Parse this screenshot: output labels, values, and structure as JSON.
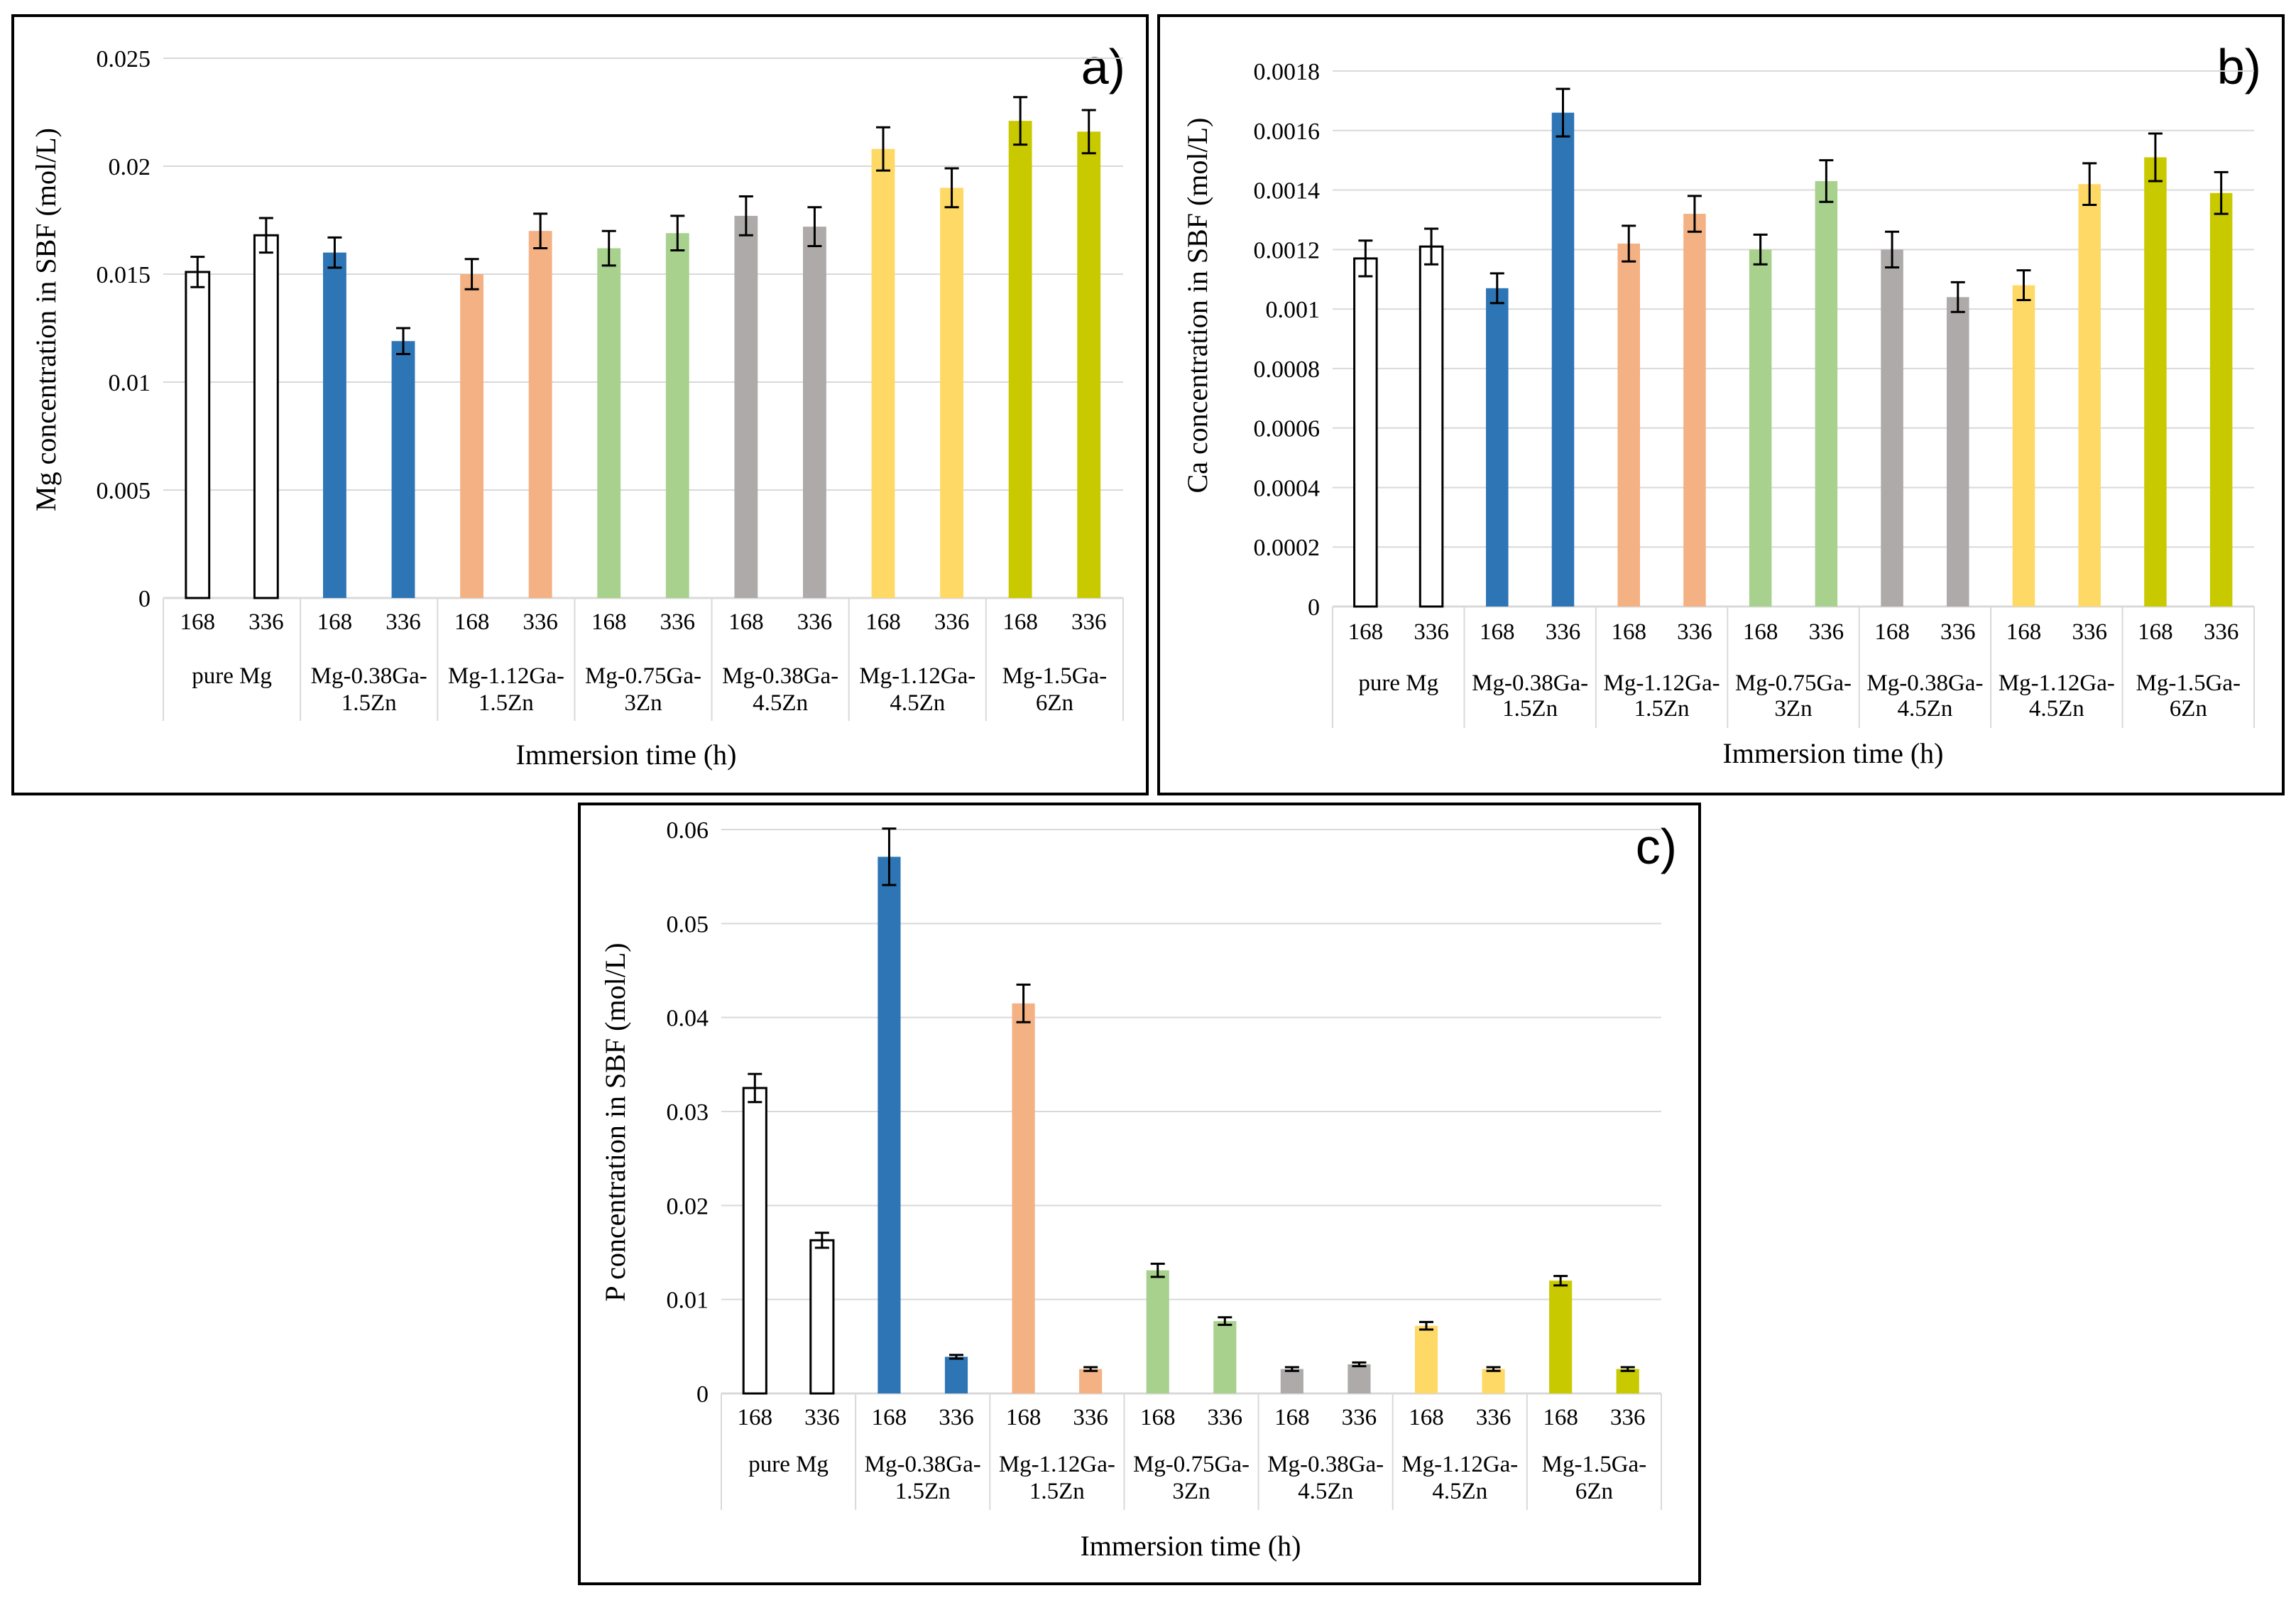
{
  "chart_data": [
    {
      "type": "bar",
      "panel_label": "a)",
      "ylabel": "Mg concentration in SBF (mol/L)",
      "xlabel": "Immersion time (h)",
      "ylim": [
        0,
        0.025
      ],
      "yticks": [
        {
          "value": 0,
          "label": "0"
        },
        {
          "value": 0.005,
          "label": "0.005"
        },
        {
          "value": 0.01,
          "label": "0.01"
        },
        {
          "value": 0.015,
          "label": "0.015"
        },
        {
          "value": 0.02,
          "label": "0.02"
        },
        {
          "value": 0.025,
          "label": "0.025"
        }
      ],
      "grid": true,
      "categories": [
        "pure Mg",
        "Mg-0.38Ga-1.5Zn",
        "Mg-1.12Ga-1.5Zn",
        "Mg-0.75Ga-3Zn",
        "Mg-0.38Ga-4.5Zn",
        "Mg-1.12Ga-4.5Zn",
        "Mg-1.5Ga-6Zn"
      ],
      "category_lines": [
        [
          "pure Mg"
        ],
        [
          "Mg-0.38Ga-",
          "1.5Zn"
        ],
        [
          "Mg-1.12Ga-",
          "1.5Zn"
        ],
        [
          "Mg-0.75Ga-",
          "3Zn"
        ],
        [
          "Mg-0.38Ga-",
          "4.5Zn"
        ],
        [
          "Mg-1.12Ga-",
          "4.5Zn"
        ],
        [
          "Mg-1.5Ga-",
          "6Zn"
        ]
      ],
      "times": [
        "168",
        "336"
      ],
      "colors": [
        "#ffffff",
        "#2e75b6",
        "#f4b183",
        "#a9d18e",
        "#aeaaaa",
        "#ffd966",
        "#c9c900"
      ],
      "values": [
        [
          0.0151,
          0.0168
        ],
        [
          0.016,
          0.0119
        ],
        [
          0.015,
          0.017
        ],
        [
          0.0162,
          0.0169
        ],
        [
          0.0177,
          0.0172
        ],
        [
          0.0208,
          0.019
        ],
        [
          0.0221,
          0.0216
        ]
      ],
      "errors": [
        [
          0.0007,
          0.0008
        ],
        [
          0.0007,
          0.0006
        ],
        [
          0.0007,
          0.0008
        ],
        [
          0.0008,
          0.0008
        ],
        [
          0.0009,
          0.0009
        ],
        [
          0.001,
          0.0009
        ],
        [
          0.0011,
          0.001
        ]
      ]
    },
    {
      "type": "bar",
      "panel_label": "b)",
      "ylabel": "Ca concentration in SBF (mol/L)",
      "xlabel": "Immersion time (h)",
      "ylim": [
        0,
        0.0018
      ],
      "yticks": [
        {
          "value": 0,
          "label": "0"
        },
        {
          "value": 0.0002,
          "label": "0.0002"
        },
        {
          "value": 0.0004,
          "label": "0.0004"
        },
        {
          "value": 0.0006,
          "label": "0.0006"
        },
        {
          "value": 0.0008,
          "label": "0.0008"
        },
        {
          "value": 0.001,
          "label": "0.001"
        },
        {
          "value": 0.0012,
          "label": "0.0012"
        },
        {
          "value": 0.0014,
          "label": "0.0014"
        },
        {
          "value": 0.0016,
          "label": "0.0016"
        },
        {
          "value": 0.0018,
          "label": "0.0018"
        }
      ],
      "grid": true,
      "categories": [
        "pure Mg",
        "Mg-0.38Ga-1.5Zn",
        "Mg-1.12Ga-1.5Zn",
        "Mg-0.75Ga-3Zn",
        "Mg-0.38Ga-4.5Zn",
        "Mg-1.12Ga-4.5Zn",
        "Mg-1.5Ga-6Zn"
      ],
      "category_lines": [
        [
          "pure Mg"
        ],
        [
          "Mg-0.38Ga-",
          "1.5Zn"
        ],
        [
          "Mg-1.12Ga-",
          "1.5Zn"
        ],
        [
          "Mg-0.75Ga-",
          "3Zn"
        ],
        [
          "Mg-0.38Ga-",
          "4.5Zn"
        ],
        [
          "Mg-1.12Ga-",
          "4.5Zn"
        ],
        [
          "Mg-1.5Ga-",
          "6Zn"
        ]
      ],
      "times": [
        "168",
        "336"
      ],
      "colors": [
        "#ffffff",
        "#2e75b6",
        "#f4b183",
        "#a9d18e",
        "#aeaaaa",
        "#ffd966",
        "#c9c900"
      ],
      "values": [
        [
          0.00117,
          0.00121
        ],
        [
          0.00107,
          0.00166
        ],
        [
          0.00122,
          0.00132
        ],
        [
          0.0012,
          0.00143
        ],
        [
          0.0012,
          0.00104
        ],
        [
          0.00108,
          0.00142
        ],
        [
          0.00151,
          0.00139
        ]
      ],
      "errors": [
        [
          6e-05,
          6e-05
        ],
        [
          5e-05,
          8e-05
        ],
        [
          6e-05,
          6e-05
        ],
        [
          5e-05,
          7e-05
        ],
        [
          6e-05,
          5e-05
        ],
        [
          5e-05,
          7e-05
        ],
        [
          8e-05,
          7e-05
        ]
      ]
    },
    {
      "type": "bar",
      "panel_label": "c)",
      "ylabel": "P concentration in SBF  (mol/L)",
      "xlabel": "Immersion time (h)",
      "ylim": [
        0,
        0.06
      ],
      "yticks": [
        {
          "value": 0,
          "label": "0"
        },
        {
          "value": 0.01,
          "label": "0.01"
        },
        {
          "value": 0.02,
          "label": "0.02"
        },
        {
          "value": 0.03,
          "label": "0.03"
        },
        {
          "value": 0.04,
          "label": "0.04"
        },
        {
          "value": 0.05,
          "label": "0.05"
        },
        {
          "value": 0.06,
          "label": "0.06"
        }
      ],
      "grid": true,
      "categories": [
        "pure Mg",
        "Mg-0.38Ga-1.5Zn",
        "Mg-1.12Ga-1.5Zn",
        "Mg-0.75Ga-3Zn",
        "Mg-0.38Ga-4.5Zn",
        "Mg-1.12Ga-4.5Zn",
        "Mg-1.5Ga-6Zn"
      ],
      "category_lines": [
        [
          "pure Mg"
        ],
        [
          "Mg-0.38Ga-",
          "1.5Zn"
        ],
        [
          "Mg-1.12Ga-",
          "1.5Zn"
        ],
        [
          "Mg-0.75Ga-",
          "3Zn"
        ],
        [
          "Mg-0.38Ga-",
          "4.5Zn"
        ],
        [
          "Mg-1.12Ga-",
          "4.5Zn"
        ],
        [
          "Mg-1.5Ga-",
          "6Zn"
        ]
      ],
      "times": [
        "168",
        "336"
      ],
      "colors": [
        "#ffffff",
        "#2e75b6",
        "#f4b183",
        "#a9d18e",
        "#aeaaaa",
        "#ffd966",
        "#c9c900"
      ],
      "values": [
        [
          0.0325,
          0.0163
        ],
        [
          0.0571,
          0.0039
        ],
        [
          0.0415,
          0.0026
        ],
        [
          0.0131,
          0.0077
        ],
        [
          0.0026,
          0.0031
        ],
        [
          0.0072,
          0.0026
        ],
        [
          0.012,
          0.0026
        ]
      ],
      "errors": [
        [
          0.0015,
          0.0008
        ],
        [
          0.003,
          0.0002
        ],
        [
          0.002,
          0.0002
        ],
        [
          0.0007,
          0.0004
        ],
        [
          0.0002,
          0.0002
        ],
        [
          0.0004,
          0.0002
        ],
        [
          0.0005,
          0.0002
        ]
      ]
    }
  ]
}
